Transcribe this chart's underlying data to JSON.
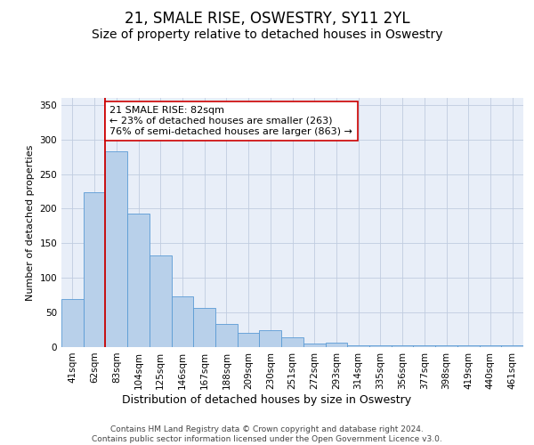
{
  "title": "21, SMALE RISE, OSWESTRY, SY11 2YL",
  "subtitle": "Size of property relative to detached houses in Oswestry",
  "xlabel": "Distribution of detached houses by size in Oswestry",
  "ylabel": "Number of detached properties",
  "categories": [
    "41sqm",
    "62sqm",
    "83sqm",
    "104sqm",
    "125sqm",
    "146sqm",
    "167sqm",
    "188sqm",
    "209sqm",
    "230sqm",
    "251sqm",
    "272sqm",
    "293sqm",
    "314sqm",
    "335sqm",
    "356sqm",
    "377sqm",
    "398sqm",
    "419sqm",
    "440sqm",
    "461sqm"
  ],
  "bar_heights": [
    70,
    224,
    283,
    193,
    132,
    73,
    57,
    34,
    21,
    25,
    14,
    5,
    6,
    3,
    3,
    2,
    3,
    3,
    3,
    2,
    3
  ],
  "bar_color": "#b8d0ea",
  "bar_edge_color": "#5b9bd5",
  "bg_color": "#e8eef8",
  "grid_color": "#c0cce0",
  "annotation_text": "21 SMALE RISE: 82sqm\n← 23% of detached houses are smaller (263)\n76% of semi-detached houses are larger (863) →",
  "vline_x_index": 2,
  "vline_color": "#cc0000",
  "box_facecolor": "#ffffff",
  "box_edgecolor": "#cc0000",
  "ylim": [
    0,
    360
  ],
  "yticks": [
    0,
    50,
    100,
    150,
    200,
    250,
    300,
    350
  ],
  "footer": "Contains HM Land Registry data © Crown copyright and database right 2024.\nContains public sector information licensed under the Open Government Licence v3.0.",
  "title_fontsize": 12,
  "subtitle_fontsize": 10,
  "annotation_fontsize": 8,
  "ylabel_fontsize": 8,
  "xlabel_fontsize": 9,
  "tick_fontsize": 7.5,
  "footer_fontsize": 6.5
}
